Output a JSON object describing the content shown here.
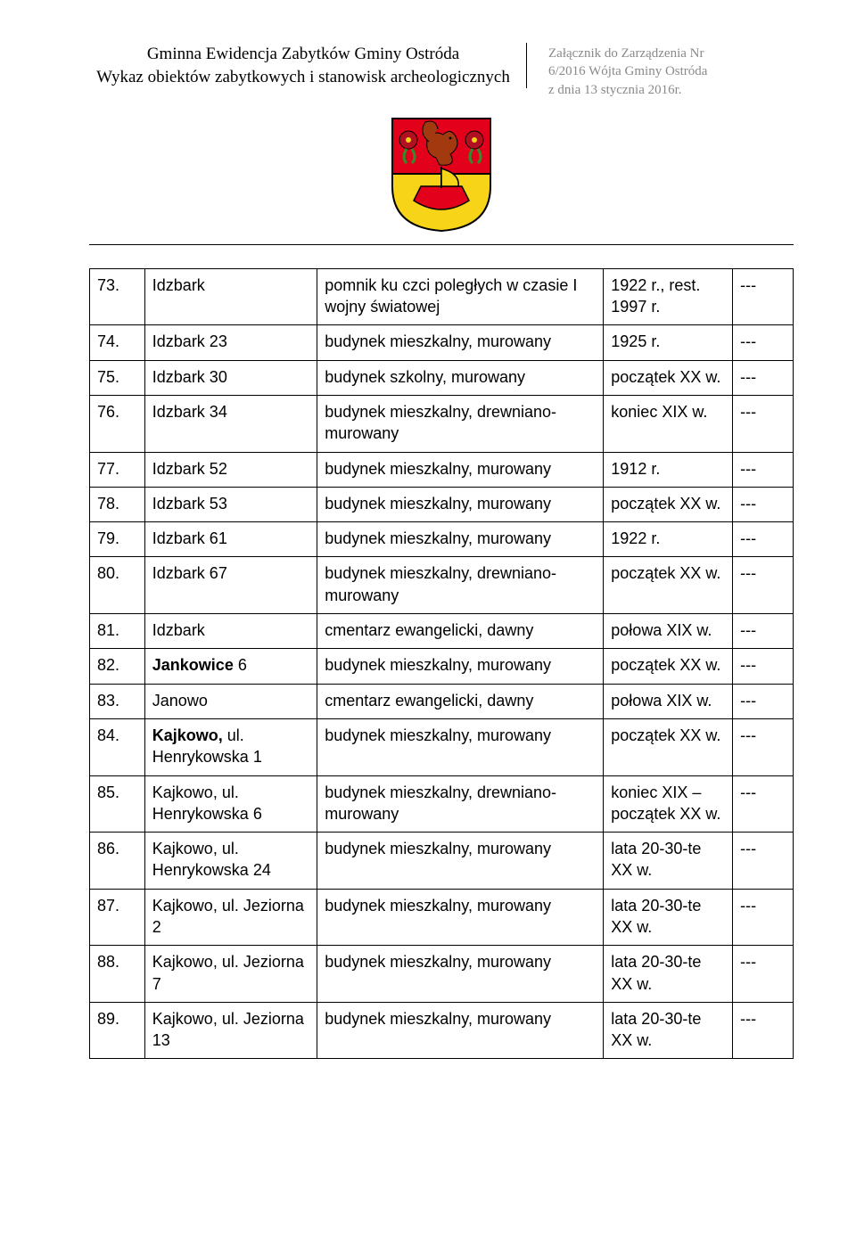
{
  "header": {
    "title_line1": "Gminna Ewidencja Zabytków Gminy Ostróda",
    "title_line2": "Wykaz obiektów zabytkowych i stanowisk archeologicznych",
    "annex_line1": "Załącznik do Zarządzenia Nr",
    "annex_line2": "6/2016 Wójta Gminy Ostróda",
    "annex_line3": "z dnia 13 stycznia 2016r."
  },
  "rows": [
    {
      "n": "73.",
      "loc": "Idzbark",
      "loc_bold": false,
      "obj": "pomnik ku czci poległych w czasie I wojny światowej",
      "date": "1922 r., rest. 1997 r.",
      "mark": "---"
    },
    {
      "n": "74.",
      "loc": "Idzbark 23",
      "loc_bold": false,
      "obj": "budynek mieszkalny, murowany",
      "date": "1925 r.",
      "mark": "---"
    },
    {
      "n": "75.",
      "loc": "Idzbark 30",
      "loc_bold": false,
      "obj": "budynek szkolny, murowany",
      "date": "początek XX w.",
      "mark": "---"
    },
    {
      "n": "76.",
      "loc": "Idzbark 34",
      "loc_bold": false,
      "obj": "budynek mieszkalny, drewniano-murowany",
      "date": "koniec XIX w.",
      "mark": "---"
    },
    {
      "n": "77.",
      "loc": "Idzbark 52",
      "loc_bold": false,
      "obj": "budynek mieszkalny, murowany",
      "date": "1912 r.",
      "mark": "---"
    },
    {
      "n": "78.",
      "loc": "Idzbark 53",
      "loc_bold": false,
      "obj": "budynek mieszkalny, murowany",
      "date": "początek XX w.",
      "mark": "---"
    },
    {
      "n": "79.",
      "loc": "Idzbark 61",
      "loc_bold": false,
      "obj": "budynek mieszkalny, murowany",
      "date": "1922 r.",
      "mark": "---"
    },
    {
      "n": "80.",
      "loc": "Idzbark 67",
      "loc_bold": false,
      "obj": "budynek mieszkalny, drewniano-murowany",
      "date": "początek XX w.",
      "mark": "---"
    },
    {
      "n": "81.",
      "loc": "Idzbark",
      "loc_bold": false,
      "obj": "cmentarz ewangelicki, dawny",
      "date": "połowa XIX w.",
      "mark": "---"
    },
    {
      "n": "82.",
      "loc_html": "<span class=\"bold\">Jankowice</span> 6",
      "obj": "budynek mieszkalny, murowany",
      "date": "początek XX w.",
      "mark": "---"
    },
    {
      "n": "83.",
      "loc": "Janowo",
      "loc_bold": false,
      "obj": "cmentarz ewangelicki, dawny",
      "date": "połowa XIX w.",
      "mark": "---"
    },
    {
      "n": "84.",
      "loc_html": "<span class=\"bold\">Kajkowo,</span> ul. Henrykowska 1",
      "obj": "budynek mieszkalny, murowany",
      "date": "początek XX w.",
      "mark": "---"
    },
    {
      "n": "85.",
      "loc": "Kajkowo, ul. Henrykowska 6",
      "loc_bold": false,
      "obj": "budynek mieszkalny, drewniano-murowany",
      "date": "koniec XIX – początek XX w.",
      "mark": "---"
    },
    {
      "n": "86.",
      "loc": "Kajkowo, ul. Henrykowska 24",
      "loc_bold": false,
      "obj": "budynek mieszkalny, murowany",
      "date": "lata 20-30-te XX w.",
      "mark": "---"
    },
    {
      "n": "87.",
      "loc": "Kajkowo, ul. Jeziorna 2",
      "loc_bold": false,
      "obj": "budynek mieszkalny, murowany",
      "date": "lata 20-30-te XX w.",
      "mark": "---"
    },
    {
      "n": "88.",
      "loc": "Kajkowo, ul. Jeziorna 7",
      "loc_bold": false,
      "obj": "budynek mieszkalny, murowany",
      "date": "lata 20-30-te XX w.",
      "mark": "---"
    },
    {
      "n": "89.",
      "loc": "Kajkowo, ul. Jeziorna 13",
      "loc_bold": false,
      "obj": "budynek mieszkalny, murowany",
      "date": "lata 20-30-te XX w.",
      "mark": "---"
    }
  ],
  "colors": {
    "shield_red": "#e2001a",
    "shield_yellow": "#f7d417",
    "shield_outline": "#000000",
    "leaf_green": "#2f8f2f",
    "rose_dark": "#b01020",
    "squirrel": "#a33a0f"
  }
}
